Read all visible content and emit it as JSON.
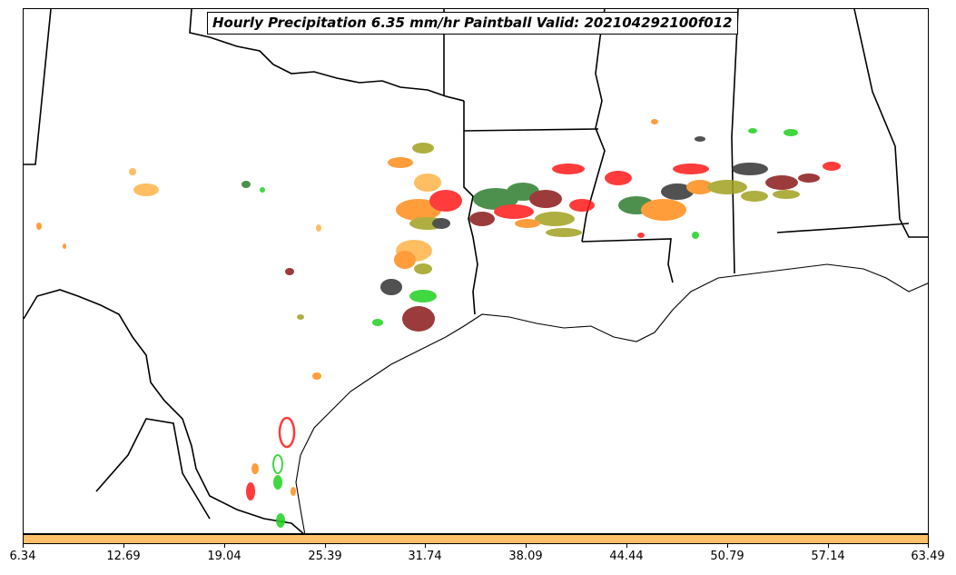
{
  "title": "Hourly Precipitation 6.35 mm/hr Paintball Valid: 202104292100f012",
  "colorbar": {
    "color": "#ffc069",
    "ticks": [
      "6.34",
      "12.69",
      "19.04",
      "25.39",
      "31.74",
      "38.09",
      "44.44",
      "50.79",
      "57.14",
      "63.49"
    ]
  },
  "paintball_colors": {
    "red": "#ff1a1a",
    "orange": "#ff8c1a",
    "light_orange": "#ffb347",
    "olive": "#a0a020",
    "green": "#1fd11f",
    "dark_green": "#2e7d2e",
    "maroon": "#8b1a1a",
    "gray": "#333333"
  }
}
